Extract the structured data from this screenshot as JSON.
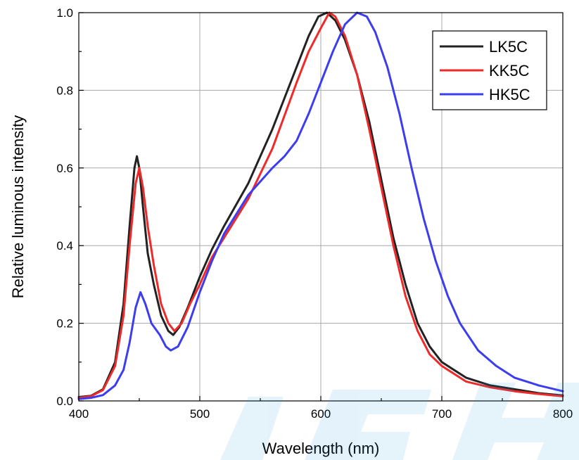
{
  "chart_data": {
    "type": "line",
    "title": "",
    "xlabel": "Wavelength (nm)",
    "ylabel": "Relative  luminous  intensity",
    "xlim": [
      400,
      800
    ],
    "ylim": [
      0.0,
      1.0
    ],
    "xticks": [
      400,
      500,
      600,
      700,
      800
    ],
    "xtick_labels": [
      "400",
      "500",
      "600",
      "700",
      "800"
    ],
    "yticks": [
      0.0,
      0.2,
      0.4,
      0.6,
      0.8,
      1.0
    ],
    "ytick_labels": [
      "0.0",
      "0.2",
      "0.4",
      "0.6",
      "0.8",
      "1.0"
    ],
    "grid": true,
    "legend_position": "top-right",
    "series": [
      {
        "name": "LK5C",
        "color": "#222222",
        "points": [
          [
            400,
            0.01
          ],
          [
            410,
            0.013
          ],
          [
            420,
            0.03
          ],
          [
            430,
            0.1
          ],
          [
            437,
            0.25
          ],
          [
            442,
            0.45
          ],
          [
            446,
            0.6
          ],
          [
            448,
            0.63
          ],
          [
            450,
            0.6
          ],
          [
            453,
            0.5
          ],
          [
            457,
            0.38
          ],
          [
            462,
            0.3
          ],
          [
            468,
            0.22
          ],
          [
            474,
            0.18
          ],
          [
            478,
            0.17
          ],
          [
            483,
            0.19
          ],
          [
            490,
            0.24
          ],
          [
            500,
            0.32
          ],
          [
            510,
            0.39
          ],
          [
            520,
            0.45
          ],
          [
            540,
            0.56
          ],
          [
            560,
            0.7
          ],
          [
            580,
            0.86
          ],
          [
            590,
            0.94
          ],
          [
            598,
            0.99
          ],
          [
            605,
            1.0
          ],
          [
            612,
            0.98
          ],
          [
            620,
            0.93
          ],
          [
            630,
            0.84
          ],
          [
            640,
            0.72
          ],
          [
            650,
            0.57
          ],
          [
            660,
            0.42
          ],
          [
            670,
            0.3
          ],
          [
            680,
            0.2
          ],
          [
            690,
            0.14
          ],
          [
            700,
            0.1
          ],
          [
            720,
            0.06
          ],
          [
            740,
            0.04
          ],
          [
            760,
            0.03
          ],
          [
            780,
            0.02
          ],
          [
            800,
            0.014
          ]
        ]
      },
      {
        "name": "KK5C",
        "color": "#ee2a2a",
        "points": [
          [
            400,
            0.008
          ],
          [
            410,
            0.012
          ],
          [
            420,
            0.028
          ],
          [
            430,
            0.09
          ],
          [
            437,
            0.22
          ],
          [
            442,
            0.4
          ],
          [
            447,
            0.56
          ],
          [
            450,
            0.6
          ],
          [
            453,
            0.55
          ],
          [
            457,
            0.45
          ],
          [
            462,
            0.35
          ],
          [
            468,
            0.25
          ],
          [
            474,
            0.2
          ],
          [
            479,
            0.18
          ],
          [
            485,
            0.2
          ],
          [
            492,
            0.25
          ],
          [
            500,
            0.3
          ],
          [
            510,
            0.37
          ],
          [
            520,
            0.42
          ],
          [
            540,
            0.52
          ],
          [
            560,
            0.65
          ],
          [
            580,
            0.82
          ],
          [
            590,
            0.9
          ],
          [
            600,
            0.96
          ],
          [
            607,
            1.0
          ],
          [
            612,
            0.99
          ],
          [
            620,
            0.94
          ],
          [
            630,
            0.84
          ],
          [
            640,
            0.7
          ],
          [
            650,
            0.55
          ],
          [
            660,
            0.4
          ],
          [
            670,
            0.27
          ],
          [
            680,
            0.18
          ],
          [
            690,
            0.12
          ],
          [
            700,
            0.09
          ],
          [
            720,
            0.05
          ],
          [
            740,
            0.035
          ],
          [
            760,
            0.025
          ],
          [
            780,
            0.018
          ],
          [
            800,
            0.012
          ]
        ]
      },
      {
        "name": "HK5C",
        "color": "#3d3df0",
        "points": [
          [
            400,
            0.005
          ],
          [
            410,
            0.008
          ],
          [
            420,
            0.015
          ],
          [
            430,
            0.04
          ],
          [
            437,
            0.08
          ],
          [
            442,
            0.15
          ],
          [
            447,
            0.24
          ],
          [
            451,
            0.28
          ],
          [
            455,
            0.25
          ],
          [
            460,
            0.2
          ],
          [
            467,
            0.17
          ],
          [
            472,
            0.14
          ],
          [
            476,
            0.13
          ],
          [
            482,
            0.14
          ],
          [
            490,
            0.19
          ],
          [
            500,
            0.28
          ],
          [
            510,
            0.36
          ],
          [
            520,
            0.43
          ],
          [
            540,
            0.53
          ],
          [
            560,
            0.6
          ],
          [
            570,
            0.63
          ],
          [
            580,
            0.67
          ],
          [
            590,
            0.74
          ],
          [
            600,
            0.82
          ],
          [
            610,
            0.9
          ],
          [
            620,
            0.97
          ],
          [
            630,
            1.0
          ],
          [
            638,
            0.99
          ],
          [
            645,
            0.95
          ],
          [
            655,
            0.86
          ],
          [
            665,
            0.74
          ],
          [
            675,
            0.6
          ],
          [
            685,
            0.47
          ],
          [
            695,
            0.36
          ],
          [
            705,
            0.27
          ],
          [
            715,
            0.2
          ],
          [
            730,
            0.13
          ],
          [
            745,
            0.09
          ],
          [
            760,
            0.06
          ],
          [
            780,
            0.04
          ],
          [
            800,
            0.025
          ]
        ]
      }
    ]
  }
}
